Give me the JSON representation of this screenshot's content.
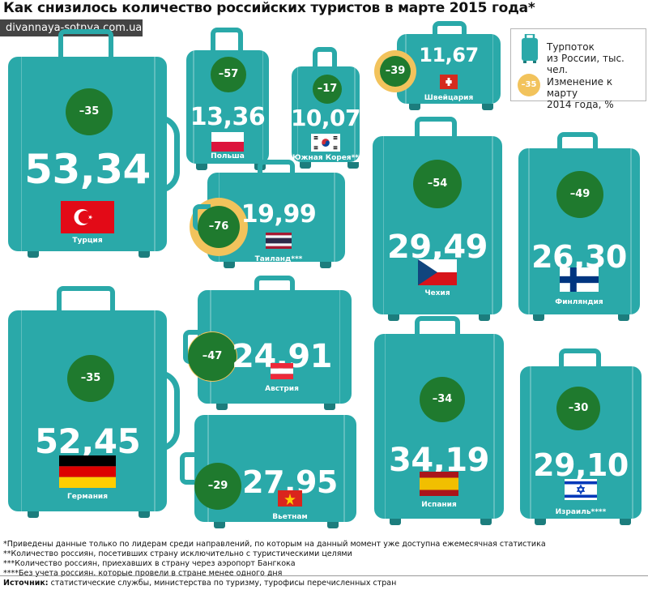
{
  "header": {
    "title": "Как снизилось количество российских туристов в марте 2015 года*",
    "site": "divannaya-sotnya.com.ua"
  },
  "legend": {
    "flow_label_1": "Турпоток",
    "flow_label_2": "из России, тыс. чел.",
    "change_sample": "–35",
    "change_label_1": "Изменение к марту",
    "change_label_2": "2014 года, %"
  },
  "chart_data": {
    "type": "pictogram",
    "title": "Как снизилось количество российских туристов в марте 2015 года*",
    "series": [
      {
        "name": "Турпоток из России, тыс. чел.",
        "unit": "тыс. чел."
      },
      {
        "name": "Изменение к марту 2014 года, %",
        "unit": "%"
      }
    ],
    "items": [
      {
        "country": "Турция",
        "value": "53,34",
        "value_num": 53.34,
        "change": "–35",
        "change_num": -35
      },
      {
        "country": "Польша",
        "value": "13,36",
        "value_num": 13.36,
        "change": "–57",
        "change_num": -57
      },
      {
        "country": "Южная Корея**",
        "value": "10,07",
        "value_num": 10.07,
        "change": "–17",
        "change_num": -17
      },
      {
        "country": "Швейцария",
        "value": "11,67",
        "value_num": 11.67,
        "change": "–39",
        "change_num": -39
      },
      {
        "country": "Таиланд***",
        "value": "19,99",
        "value_num": 19.99,
        "change": "–76",
        "change_num": -76
      },
      {
        "country": "Чехия",
        "value": "29,49",
        "value_num": 29.49,
        "change": "–54",
        "change_num": -54
      },
      {
        "country": "Финляндия",
        "value": "26,30",
        "value_num": 26.3,
        "change": "–49",
        "change_num": -49
      },
      {
        "country": "Германия",
        "value": "52,45",
        "value_num": 52.45,
        "change": "–35",
        "change_num": -35
      },
      {
        "country": "Австрия",
        "value": "24,91",
        "value_num": 24.91,
        "change": "–47",
        "change_num": -47
      },
      {
        "country": "Вьетнам",
        "value": "27,95",
        "value_num": 27.95,
        "change": "–29",
        "change_num": -29
      },
      {
        "country": "Испания",
        "value": "34,19",
        "value_num": 34.19,
        "change": "–34",
        "change_num": -34
      },
      {
        "country": "Израиль****",
        "value": "29,10",
        "value_num": 29.1,
        "change": "–30",
        "change_num": -30
      }
    ]
  },
  "colors": {
    "suitcase": "#2aa9a9",
    "change_circle": "#1f7a2e",
    "change_ring": "#f2c35c"
  },
  "footnotes": [
    "*Приведены данные только по лидерам среди направлений, по которым на данный момент уже доступна ежемесячная статистика",
    "**Количество россиян, посетивших страну исключительно с туристическими целями",
    "***Количество россиян, приехавших в страну через аэропорт Бангкока",
    "****Без учета россиян, которые провели в стране менее одного дня"
  ],
  "source": {
    "label": "Источник:",
    "text": " статистические службы, министерства по туризму, турофисы перечисленных стран"
  }
}
